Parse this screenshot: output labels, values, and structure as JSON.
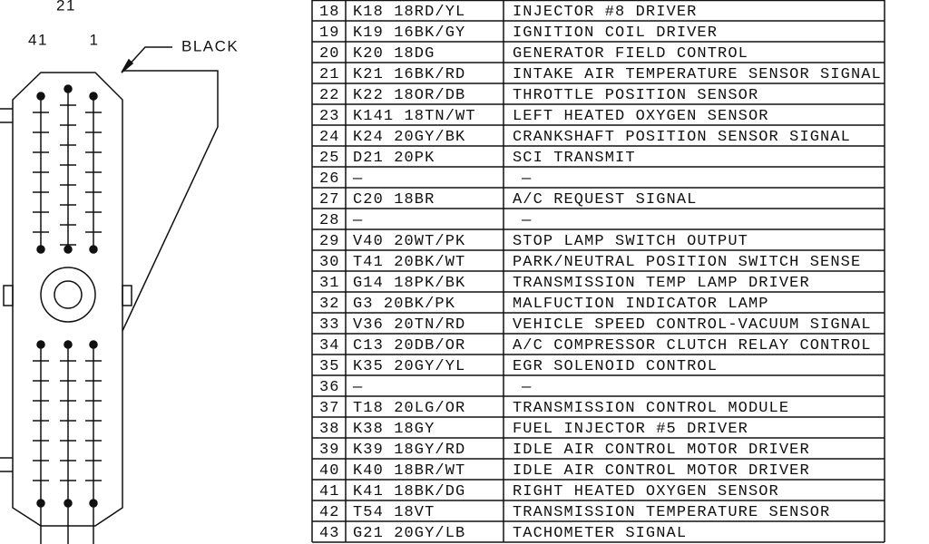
{
  "connector": {
    "pin_top": "21",
    "pin_left": "41",
    "pin_right": "1",
    "color_label": "BLACK"
  },
  "table": {
    "rows": [
      [
        "18",
        "K18 18RD/YL",
        "INJECTOR #8 DRIVER"
      ],
      [
        "19",
        "K19 16BK/GY",
        "IGNITION COIL DRIVER"
      ],
      [
        "20",
        "K20 18DG",
        "GENERATOR FIELD CONTROL"
      ],
      [
        "21",
        "K21 16BK/RD",
        "INTAKE AIR TEMPERATURE SENSOR SIGNAL"
      ],
      [
        "22",
        "K22 18OR/DB",
        "THROTTLE POSITION SENSOR"
      ],
      [
        "23",
        "K141 18TN/WT",
        "LEFT HEATED OXYGEN SENSOR"
      ],
      [
        "24",
        "K24 20GY/BK",
        "CRANKSHAFT POSITION SENSOR SIGNAL"
      ],
      [
        "25",
        "D21 20PK",
        "SCI TRANSMIT"
      ],
      [
        "26",
        "—",
        "—"
      ],
      [
        "27",
        "C20 18BR",
        "A/C REQUEST SIGNAL"
      ],
      [
        "28",
        "—",
        "—"
      ],
      [
        "29",
        "V40 20WT/PK",
        "STOP LAMP SWITCH OUTPUT"
      ],
      [
        "30",
        "T41 20BK/WT",
        "PARK/NEUTRAL POSITION SWITCH SENSE"
      ],
      [
        "31",
        "G14 18PK/BK",
        "TRANSMISSION TEMP LAMP DRIVER"
      ],
      [
        "32",
        "G3 20BK/PK",
        "MALFUCTION INDICATOR LAMP"
      ],
      [
        "33",
        "V36 20TN/RD",
        "VEHICLE SPEED CONTROL-VACUUM SIGNAL"
      ],
      [
        "34",
        "C13 20DB/OR",
        "A/C COMPRESSOR CLUTCH RELAY CONTROL"
      ],
      [
        "35",
        "K35 20GY/YL",
        "EGR SOLENOID CONTROL"
      ],
      [
        "36",
        "—",
        "—"
      ],
      [
        "37",
        "T18 20LG/OR",
        "TRANSMISSION CONTROL MODULE"
      ],
      [
        "38",
        "K38 18GY",
        "FUEL INJECTOR #5 DRIVER"
      ],
      [
        "39",
        "K39 18GY/RD",
        "IDLE AIR CONTROL MOTOR DRIVER"
      ],
      [
        "40",
        "K40 18BR/WT",
        "IDLE AIR CONTROL MOTOR DRIVER"
      ],
      [
        "41",
        "K41 18BK/DG",
        "RIGHT HEATED OXYGEN SENSOR"
      ],
      [
        "42",
        "T54 18VT",
        "TRANSMISSION TEMPERATURE SENSOR"
      ],
      [
        "43",
        "G21 20GY/LB",
        "TACHOMETER SIGNAL"
      ]
    ]
  }
}
